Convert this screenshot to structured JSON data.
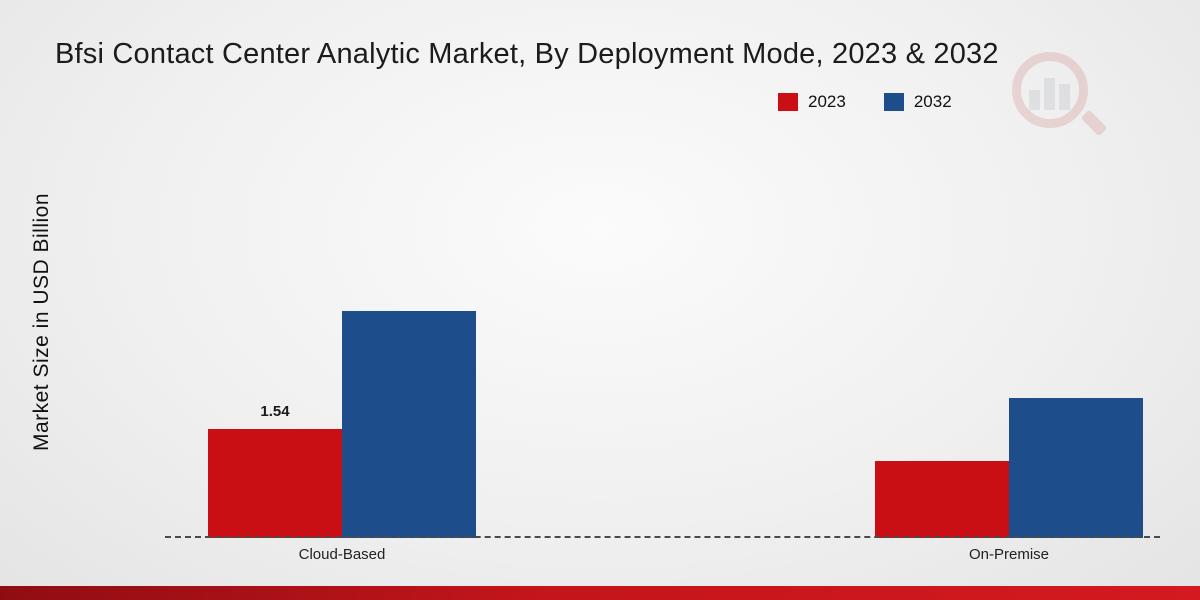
{
  "chart_data": {
    "type": "bar",
    "title": "Bfsi Contact Center Analytic Market, By Deployment Mode, 2023 & 2032",
    "ylabel": "Market Size in USD Billion",
    "xlabel": "",
    "categories": [
      "Cloud-Based",
      "On-Premise"
    ],
    "series": [
      {
        "name": "2023",
        "color": "#c90f14",
        "values": [
          1.54,
          1.08
        ],
        "value_labels": [
          "1.54",
          ""
        ]
      },
      {
        "name": "2032",
        "color": "#1d4e8b",
        "values": [
          3.2,
          1.97
        ],
        "value_labels": [
          "",
          ""
        ]
      }
    ],
    "ylim": [
      0,
      3.5
    ],
    "grid": false,
    "legend_position": "top-right",
    "baseline_style": "dashed",
    "annotations": [
      {
        "text": "1.54",
        "category": "Cloud-Based",
        "series": "2023"
      }
    ]
  },
  "watermark": {
    "name": "bar-chart-magnifier-logo"
  }
}
